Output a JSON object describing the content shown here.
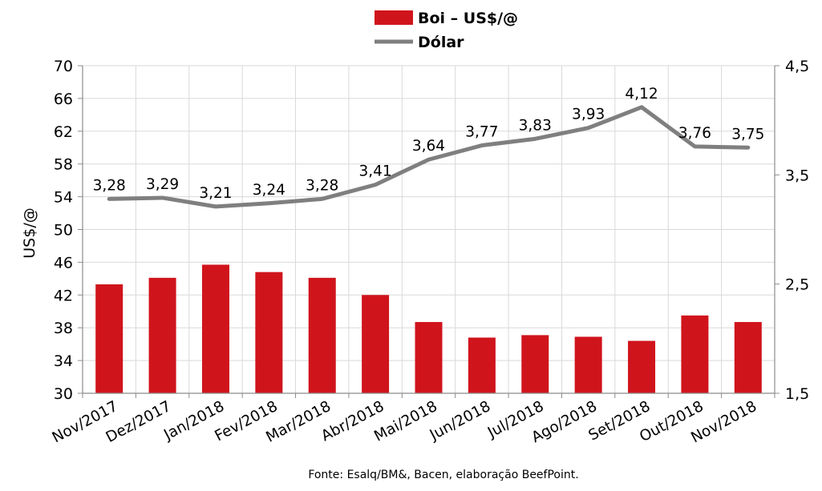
{
  "chart_data": {
    "type": "bar+line",
    "categories": [
      "Nov/2017",
      "Dez/2017",
      "Jan/2018",
      "Fev/2018",
      "Mar/2018",
      "Abr/2018",
      "Mai/2018",
      "Jun/2018",
      "Jul/2018",
      "Ago/2018",
      "Set/2018",
      "Out/2018",
      "Nov/2018"
    ],
    "series": [
      {
        "name": "Boi – US$/@",
        "type": "bar",
        "axis": "left",
        "color": "#d0141c",
        "values": [
          43.3,
          44.1,
          45.7,
          44.8,
          44.1,
          42.0,
          38.7,
          36.8,
          37.1,
          36.9,
          36.4,
          39.5,
          38.7
        ]
      },
      {
        "name": "Dólar",
        "type": "line",
        "axis": "right",
        "color": "#7f7f7f",
        "values": [
          3.28,
          3.29,
          3.21,
          3.24,
          3.28,
          3.41,
          3.64,
          3.77,
          3.83,
          3.93,
          4.12,
          3.76,
          3.75
        ],
        "labels": [
          "3,28",
          "3,29",
          "3,21",
          "3,24",
          "3,28",
          "3,41",
          "3,64",
          "3,77",
          "3,83",
          "3,93",
          "4,12",
          "3,76",
          "3,75"
        ]
      }
    ],
    "ylabel": "US$/@",
    "ylim": [
      30,
      70
    ],
    "yticks": [
      "70",
      "66",
      "62",
      "58",
      "54",
      "50",
      "46",
      "42",
      "38",
      "34",
      "30"
    ],
    "y2lim": [
      1.5,
      4.5
    ],
    "y2ticks": [
      "4,5",
      "3,5",
      "2,5",
      "1,5"
    ],
    "grid": true,
    "legend_position": "top-center",
    "source": "Fonte: Esalq/BM&, Bacen, elaboração BeefPoint."
  }
}
